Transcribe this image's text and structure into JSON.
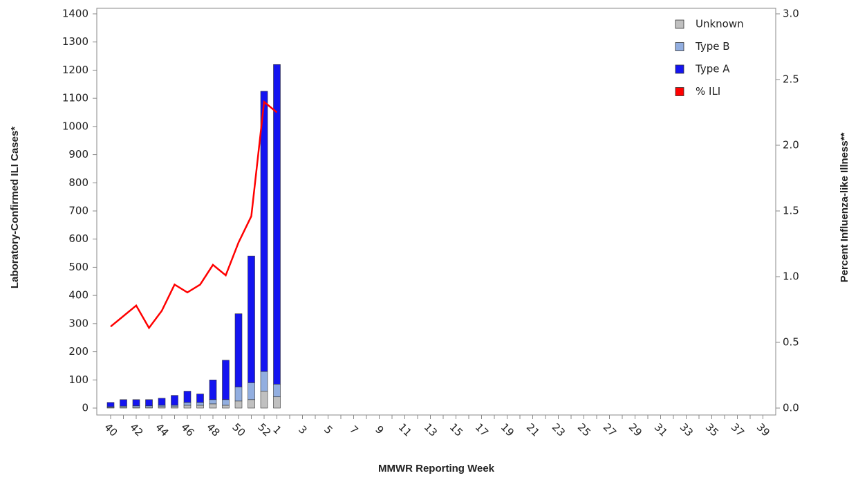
{
  "chart_data": {
    "type": "bar",
    "stacked": true,
    "x_label": "MMWR Reporting Week",
    "y_label": "Laboratory-Confirmed ILI Cases*",
    "y2_label": "Percent Influenza-like Illness**",
    "categories": [
      "40",
      null,
      "42",
      null,
      "44",
      null,
      "46",
      null,
      "48",
      null,
      "50",
      null,
      "52",
      "1",
      null,
      "3",
      null,
      "5",
      null,
      "7",
      null,
      "9",
      null,
      "11",
      null,
      "13",
      null,
      "15",
      null,
      "17",
      null,
      "19",
      null,
      "21",
      null,
      "23",
      null,
      "25",
      null,
      "27",
      null,
      "29",
      null,
      "31",
      null,
      "33",
      null,
      "35",
      null,
      "37",
      null,
      "39"
    ],
    "series": [
      {
        "name": "Unknown",
        "color": "#c0c0c0",
        "values": [
          2,
          3,
          3,
          3,
          5,
          5,
          10,
          10,
          15,
          10,
          25,
          30,
          60,
          40,
          null,
          null,
          null,
          null,
          null,
          null,
          null,
          null,
          null,
          null,
          null,
          null,
          null,
          null,
          null,
          null,
          null,
          null,
          null,
          null,
          null,
          null,
          null,
          null,
          null,
          null,
          null,
          null,
          null,
          null,
          null,
          null,
          null,
          null,
          null,
          null,
          null,
          null
        ]
      },
      {
        "name": "Type B",
        "color": "#92aee0",
        "values": [
          3,
          4,
          5,
          5,
          5,
          5,
          10,
          10,
          15,
          20,
          50,
          60,
          70,
          45,
          null,
          null,
          null,
          null,
          null,
          null,
          null,
          null,
          null,
          null,
          null,
          null,
          null,
          null,
          null,
          null,
          null,
          null,
          null,
          null,
          null,
          null,
          null,
          null,
          null,
          null,
          null,
          null,
          null,
          null,
          null,
          null,
          null,
          null,
          null,
          null,
          null,
          null
        ]
      },
      {
        "name": "Type A",
        "color": "#1414f0",
        "values": [
          15,
          23,
          22,
          22,
          25,
          35,
          40,
          30,
          70,
          140,
          260,
          450,
          995,
          1135,
          null,
          null,
          null,
          null,
          null,
          null,
          null,
          null,
          null,
          null,
          null,
          null,
          null,
          null,
          null,
          null,
          null,
          null,
          null,
          null,
          null,
          null,
          null,
          null,
          null,
          null,
          null,
          null,
          null,
          null,
          null,
          null,
          null,
          null,
          null,
          null,
          null,
          null
        ]
      },
      {
        "name": "% ILI",
        "color": "#ff0000",
        "type": "line",
        "axis": "y2",
        "values": [
          0.62,
          0.7,
          0.78,
          0.61,
          0.74,
          0.94,
          0.88,
          0.94,
          1.09,
          1.01,
          1.26,
          1.46,
          2.33,
          2.25,
          null,
          null,
          null,
          null,
          null,
          null,
          null,
          null,
          null,
          null,
          null,
          null,
          null,
          null,
          null,
          null,
          null,
          null,
          null,
          null,
          null,
          null,
          null,
          null,
          null,
          null,
          null,
          null,
          null,
          null,
          null,
          null,
          null,
          null,
          null,
          null,
          null,
          null
        ]
      }
    ],
    "ylim": [
      0,
      1400
    ],
    "yticks": [
      0,
      100,
      200,
      300,
      400,
      500,
      600,
      700,
      800,
      900,
      1000,
      1100,
      1200,
      1300,
      1400
    ],
    "y2lim": [
      0,
      3
    ],
    "y2ticks": [
      {
        "value": 0,
        "label": "0.0"
      },
      {
        "value": 0.5,
        "label": "0.5"
      },
      {
        "value": 1,
        "label": "1.0"
      },
      {
        "value": 1.5,
        "label": "1.5"
      },
      {
        "value": 2,
        "label": "2.0"
      },
      {
        "value": 2.5,
        "label": "2.5"
      },
      {
        "value": 3,
        "label": "3.0"
      }
    ],
    "legend": "top-right"
  }
}
